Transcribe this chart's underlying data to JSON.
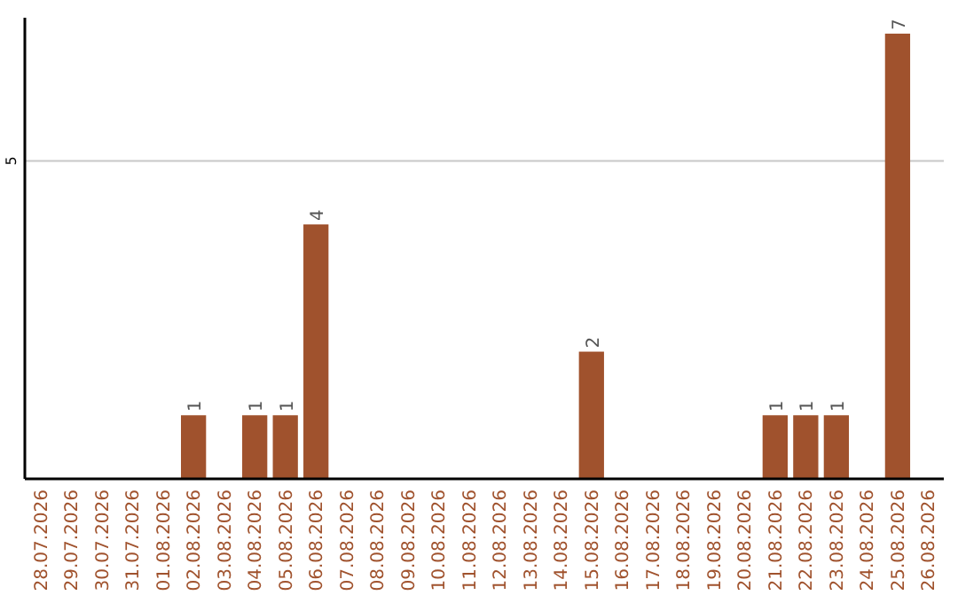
{
  "chart_data": {
    "type": "bar",
    "categories": [
      "28.07.2026",
      "29.07.2026",
      "30.07.2026",
      "31.07.2026",
      "01.08.2026",
      "02.08.2026",
      "03.08.2026",
      "04.08.2026",
      "05.08.2026",
      "06.08.2026",
      "07.08.2026",
      "08.08.2026",
      "09.08.2026",
      "10.08.2026",
      "11.08.2026",
      "12.08.2026",
      "13.08.2026",
      "14.08.2026",
      "15.08.2026",
      "16.08.2026",
      "17.08.2026",
      "18.08.2026",
      "19.08.2026",
      "20.08.2026",
      "21.08.2026",
      "22.08.2026",
      "23.08.2026",
      "24.08.2026",
      "25.08.2026",
      "26.08.2026"
    ],
    "values": [
      0,
      0,
      0,
      0,
      0,
      1,
      0,
      1,
      1,
      4,
      0,
      0,
      0,
      0,
      0,
      0,
      0,
      0,
      2,
      0,
      0,
      0,
      0,
      0,
      1,
      1,
      1,
      0,
      7,
      0
    ],
    "value_labels": [
      null,
      null,
      null,
      null,
      null,
      "1",
      null,
      "1",
      "1",
      "4",
      null,
      null,
      null,
      null,
      null,
      null,
      null,
      null,
      "2",
      null,
      null,
      null,
      null,
      null,
      "1",
      "1",
      "1",
      null,
      "7",
      null
    ],
    "color": "#a0522d",
    "ylim": [
      0,
      7.25
    ],
    "yticks": [
      5
    ],
    "grid": "y"
  }
}
